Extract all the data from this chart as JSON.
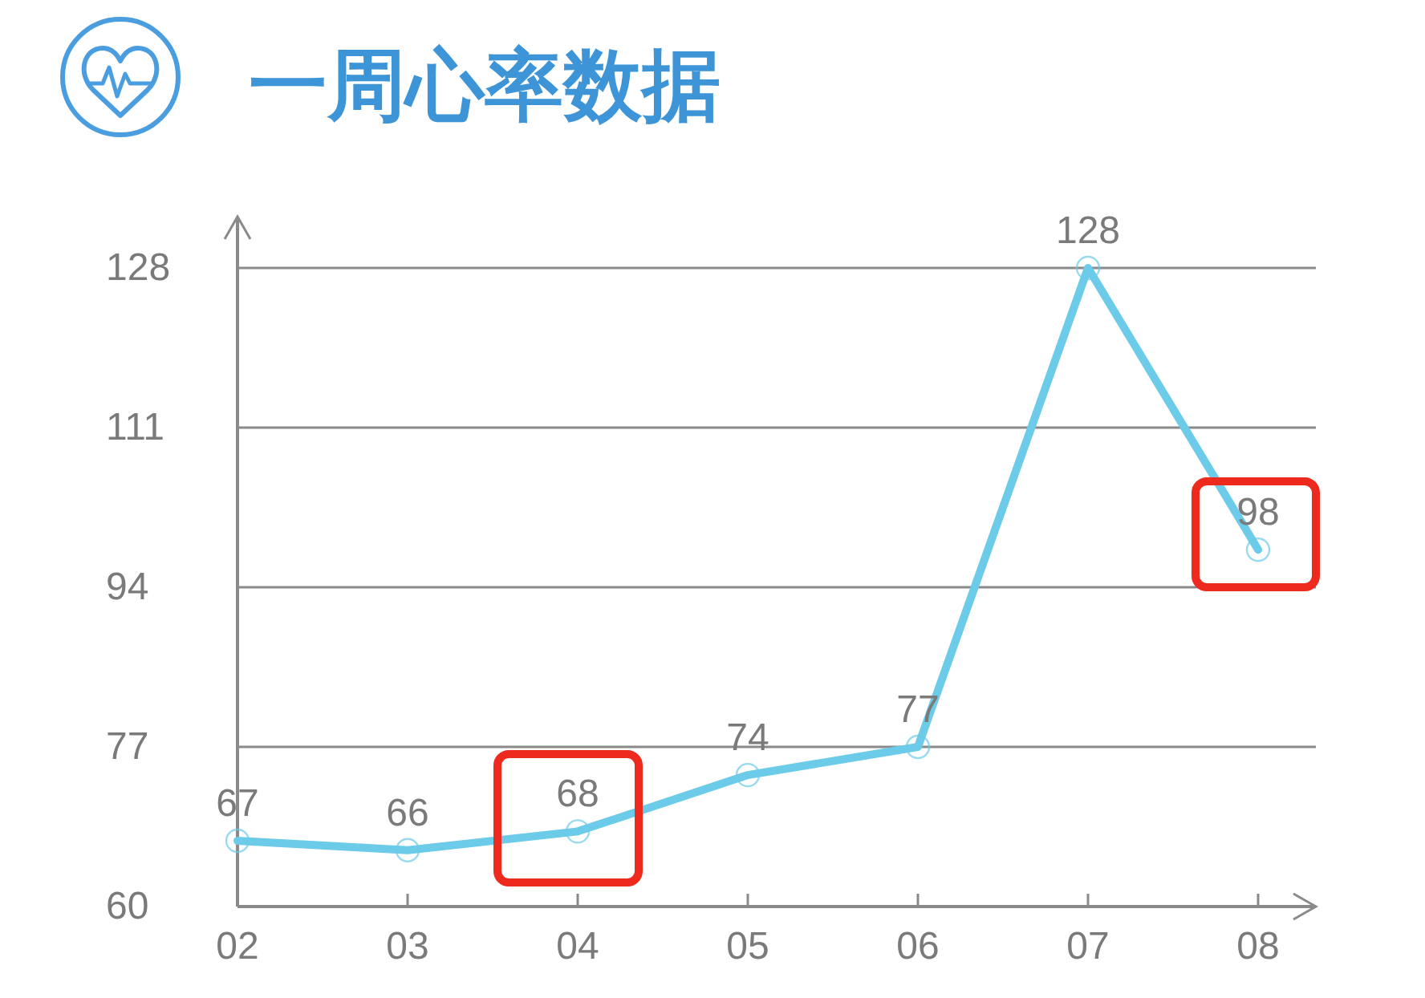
{
  "chart_data": {
    "type": "line",
    "title": "一周心率数据",
    "categories": [
      "02",
      "03",
      "04",
      "05",
      "06",
      "07",
      "08"
    ],
    "series": [
      {
        "color": "#6ccbe8",
        "values": [
          67,
          66,
          68,
          74,
          77,
          128,
          98
        ]
      }
    ],
    "ylim": [
      60,
      128
    ],
    "yticks": [
      60,
      77,
      94,
      111,
      128
    ],
    "grid": "y",
    "marker": "circle",
    "line_style": "solid",
    "data_labels": true
  }
}
